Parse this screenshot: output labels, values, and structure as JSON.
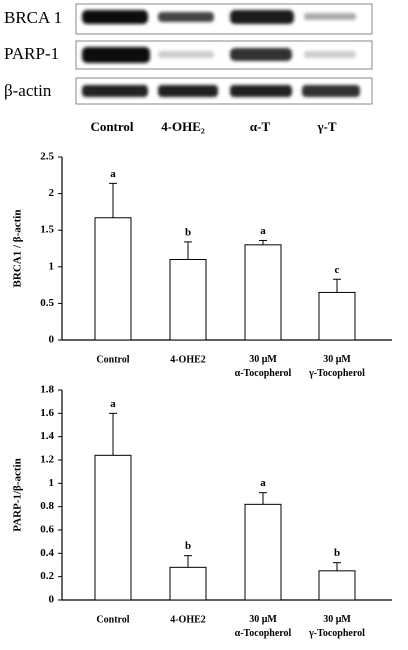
{
  "blot": {
    "rows": [
      "BRCA 1",
      "PARP-1",
      "β-actin"
    ],
    "lanes": [
      "Control",
      "4-OHE₂",
      "α-T",
      "γ-T"
    ]
  },
  "chart_data": [
    {
      "type": "bar",
      "ylabel": "BRCA1 / β-actin",
      "categories": [
        "Control",
        "4-OHE2",
        "30 μM\nα-Tocopherol",
        "30 μM\nγ-Tocopherol"
      ],
      "values": [
        1.67,
        1.1,
        1.3,
        0.65
      ],
      "errors": [
        0.47,
        0.24,
        0.06,
        0.18
      ],
      "annotations": [
        "a",
        "b",
        "a",
        "c"
      ],
      "color": "#ffffff",
      "ylim": [
        0,
        2.5
      ],
      "yticks": [
        0,
        0.5,
        1,
        1.5,
        2,
        2.5
      ],
      "grid": false
    },
    {
      "type": "bar",
      "ylabel": "PARP-1/β-actin",
      "categories": [
        "Control",
        "4-OHE2",
        "30 μM\nα-Tocopherol",
        "30 μM\nγ-Tocopherol"
      ],
      "values": [
        1.24,
        0.28,
        0.82,
        0.25
      ],
      "errors": [
        0.36,
        0.1,
        0.1,
        0.07
      ],
      "annotations": [
        "a",
        "b",
        "a",
        "b"
      ],
      "color": "#ffffff",
      "ylim": [
        0,
        1.8
      ],
      "yticks": [
        0,
        0.2,
        0.4,
        0.6,
        0.8,
        1,
        1.2,
        1.4,
        1.6,
        1.8
      ],
      "grid": false
    }
  ]
}
